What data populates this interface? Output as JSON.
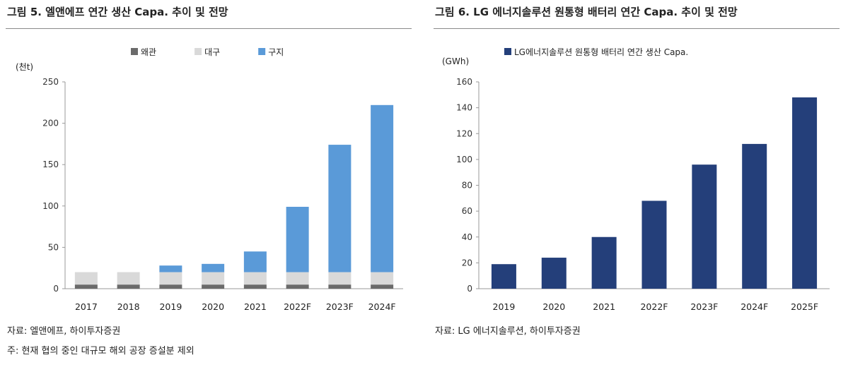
{
  "charts": {
    "left": {
      "title": "그림 5. 엘앤에프 연간 생산 Capa. 추이 및 전망",
      "unit": "(천t)",
      "source": "자료: 엘앤에프, 하이투자증권",
      "note": "주: 현재 협의 중인 대규모 해외 공장 증설분 제외"
    },
    "right": {
      "title": "그림 6. LG 에너지솔루션 원통형 배터리 연간 Capa. 추이 및 전망",
      "unit": "(GWh)",
      "source": "자료: LG 에너지솔루션, 하이투자증권"
    }
  },
  "chart_data": [
    {
      "type": "bar",
      "stacked": true,
      "title": "그림 5. 엘앤에프 연간 생산 Capa. 추이 및 전망",
      "ylabel": "(천t)",
      "categories": [
        "2017",
        "2018",
        "2019",
        "2020",
        "2021",
        "2022F",
        "2023F",
        "2024F"
      ],
      "series": [
        {
          "name": "왜관",
          "color": "#6b6b6b",
          "values": [
            5,
            5,
            5,
            5,
            5,
            5,
            5,
            5
          ]
        },
        {
          "name": "대구",
          "color": "#d9d9d9",
          "values": [
            15,
            15,
            15,
            15,
            15,
            15,
            15,
            15
          ]
        },
        {
          "name": "구지",
          "color": "#5a9ad8",
          "values": [
            0,
            0,
            8,
            10,
            25,
            79,
            154,
            202
          ]
        }
      ],
      "ylim": [
        0,
        250
      ],
      "yticks": [
        0,
        50,
        100,
        150,
        200,
        250
      ],
      "legend": "top",
      "grid": false
    },
    {
      "type": "bar",
      "title": "그림 6. LG 에너지솔루션 원통형 배터리 연간 Capa. 추이 및 전망",
      "ylabel": "(GWh)",
      "categories": [
        "2019",
        "2020",
        "2021",
        "2022F",
        "2023F",
        "2024F",
        "2025F"
      ],
      "series": [
        {
          "name": "LG에너지솔루션 원통형 배터리 연간 생산 Capa.",
          "color": "#243f7a",
          "values": [
            19,
            24,
            40,
            68,
            96,
            112,
            148
          ]
        }
      ],
      "ylim": [
        0,
        160
      ],
      "yticks": [
        0,
        20,
        40,
        60,
        80,
        100,
        120,
        140,
        160
      ],
      "legend": "top",
      "grid": false
    }
  ]
}
